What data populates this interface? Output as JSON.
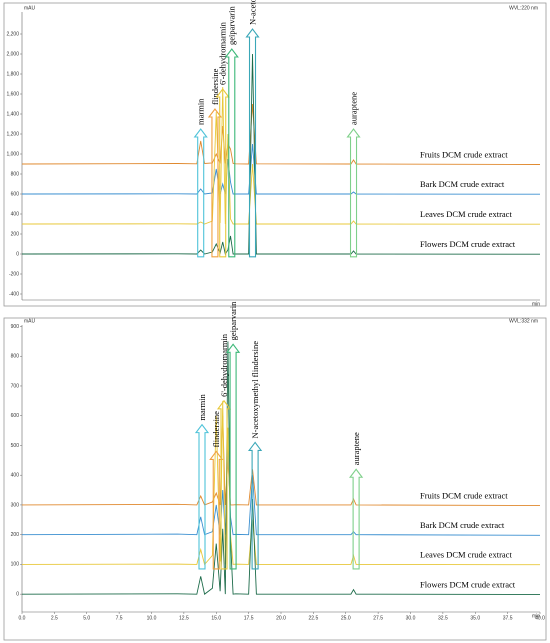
{
  "chart_data": [
    {
      "type": "line",
      "y_label": "mAU",
      "x_label": "min",
      "wavelength": "WVL:220 nm",
      "xlim": [
        0,
        40
      ],
      "ylim": [
        -460,
        2420
      ],
      "yticks": [
        -400,
        -200,
        0,
        200,
        400,
        600,
        800,
        {
          "value": 1000,
          "label": "1,000"
        },
        {
          "value": 1200,
          "label": "1,200"
        },
        {
          "value": 1400,
          "label": "1,400"
        },
        {
          "value": 1600,
          "label": "1,600"
        },
        {
          "value": 1800,
          "label": "1,800"
        },
        {
          "value": 2000,
          "label": "2,000"
        },
        {
          "value": 2200,
          "label": "2,200"
        }
      ],
      "x": [
        0,
        12,
        13.5,
        13.8,
        14.1,
        14.7,
        15.0,
        15.3,
        15.5,
        15.7,
        15.9,
        16.1,
        16.3,
        16.5,
        17.5,
        17.8,
        18.1,
        25.4,
        25.6,
        25.8,
        40
      ],
      "series": [
        {
          "name": "Fruits DCM crude extract",
          "color": "#e0892e",
          "values": [
            900,
            905,
            902,
            1130,
            905,
            910,
            1000,
            905,
            1280,
            905,
            1100,
            1050,
            905,
            902,
            900,
            1500,
            902,
            900,
            940,
            900,
            895
          ]
        },
        {
          "name": "Bark DCM crude extract",
          "color": "#3a8fd0",
          "values": [
            600,
            602,
            600,
            650,
            600,
            610,
            850,
            600,
            700,
            600,
            950,
            720,
            600,
            601,
            600,
            1100,
            600,
            600,
            620,
            600,
            598
          ]
        },
        {
          "name": "Leaves DCM crude extract",
          "color": "#e8c83a",
          "values": [
            300,
            302,
            300,
            320,
            300,
            330,
            1420,
            310,
            1670,
            300,
            1200,
            350,
            300,
            301,
            300,
            900,
            300,
            300,
            330,
            300,
            298
          ]
        },
        {
          "name": "Flowers DCM crude extract",
          "color": "#1d6b4a",
          "values": [
            0,
            2,
            0,
            40,
            0,
            20,
            100,
            10,
            120,
            0,
            40,
            180,
            0,
            1,
            0,
            2000,
            0,
            0,
            30,
            0,
            -2
          ]
        }
      ],
      "annotations": [
        {
          "text": "marmin",
          "x": 13.8,
          "y": 1250,
          "color": "#4fc3d9"
        },
        {
          "text": "flindersine",
          "x": 14.9,
          "y": 1450,
          "color": "#f0a040"
        },
        {
          "text": "6'-dehydromarmin",
          "x": 15.5,
          "y": 1650,
          "color": "#e8c83a"
        },
        {
          "text": "geiparvarin",
          "x": 16.2,
          "y": 2050,
          "color": "#3cb878"
        },
        {
          "text": "N-acetoxymethyl flindersine",
          "x": 17.8,
          "y": 2250,
          "color": "#3aa7b8"
        },
        {
          "text": "auraptene",
          "x": 25.6,
          "y": 1250,
          "color": "#7fd08a"
        }
      ]
    },
    {
      "type": "line",
      "y_label": "mAU",
      "x_label": "min",
      "wavelength": "WVL:332 nm",
      "xlim": [
        0,
        40
      ],
      "ylim": [
        -60,
        905
      ],
      "yticks": [
        0,
        100,
        200,
        300,
        400,
        500,
        600,
        700,
        800,
        900
      ],
      "xticks": [
        {
          "value": 0,
          "label": "0.0"
        },
        {
          "value": 2.5,
          "label": "2.5"
        },
        {
          "value": 5,
          "label": "5.0"
        },
        {
          "value": 7.5,
          "label": "7.5"
        },
        {
          "value": 10,
          "label": "10.0"
        },
        {
          "value": 12.5,
          "label": "12.5"
        },
        {
          "value": 15,
          "label": "15.0"
        },
        {
          "value": 17.5,
          "label": "17.5"
        },
        {
          "value": 20,
          "label": "20.0"
        },
        {
          "value": 22.5,
          "label": "22.5"
        },
        {
          "value": 25,
          "label": "25.0"
        },
        {
          "value": 27.5,
          "label": "27.5"
        },
        {
          "value": 30,
          "label": "30.0"
        },
        {
          "value": 32.5,
          "label": "32.5"
        },
        {
          "value": 35,
          "label": "35.0"
        },
        {
          "value": 37.5,
          "label": "37.5"
        },
        {
          "value": 40,
          "label": "40.0"
        }
      ],
      "x": [
        0,
        12,
        13.5,
        13.8,
        14.1,
        14.7,
        15.0,
        15.3,
        15.5,
        15.7,
        15.9,
        16.1,
        16.3,
        16.5,
        17.5,
        17.8,
        18.1,
        25.4,
        25.6,
        25.8,
        40
      ],
      "series": [
        {
          "name": "Fruits DCM crude extract",
          "color": "#e0892e",
          "values": [
            300,
            302,
            300,
            330,
            300,
            310,
            340,
            300,
            600,
            300,
            450,
            300,
            300,
            301,
            300,
            420,
            300,
            300,
            320,
            300,
            298
          ]
        },
        {
          "name": "Bark DCM crude extract",
          "color": "#3a8fd0",
          "values": [
            200,
            202,
            200,
            260,
            200,
            210,
            300,
            200,
            350,
            200,
            500,
            260,
            200,
            201,
            200,
            400,
            200,
            200,
            210,
            200,
            198
          ]
        },
        {
          "name": "Leaves DCM crude extract",
          "color": "#e8c83a",
          "values": [
            100,
            101,
            100,
            150,
            100,
            130,
            600,
            110,
            650,
            100,
            560,
            200,
            100,
            101,
            100,
            250,
            100,
            100,
            130,
            100,
            99
          ]
        },
        {
          "name": "Flowers DCM crude extract",
          "color": "#1d6b4a",
          "values": [
            0,
            1,
            0,
            60,
            0,
            20,
            170,
            10,
            220,
            0,
            850,
            180,
            0,
            1,
            0,
            320,
            0,
            0,
            15,
            0,
            -1
          ]
        }
      ],
      "annotations": [
        {
          "text": "marmin",
          "x": 13.9,
          "y": 570,
          "color": "#4fc3d9"
        },
        {
          "text": "flindersine",
          "x": 15.0,
          "y": 480,
          "color": "#f0a040"
        },
        {
          "text": "6'-dehydromarmin",
          "x": 15.6,
          "y": 650,
          "color": "#e8c83a"
        },
        {
          "text": "geiparvarin",
          "x": 16.3,
          "y": 840,
          "color": "#3cb878"
        },
        {
          "text": "N-acetoxymethyl flindersine",
          "x": 18.0,
          "y": 510,
          "color": "#3aa7b8"
        },
        {
          "text": "auraptene",
          "x": 25.8,
          "y": 420,
          "color": "#7fd08a"
        }
      ]
    }
  ]
}
